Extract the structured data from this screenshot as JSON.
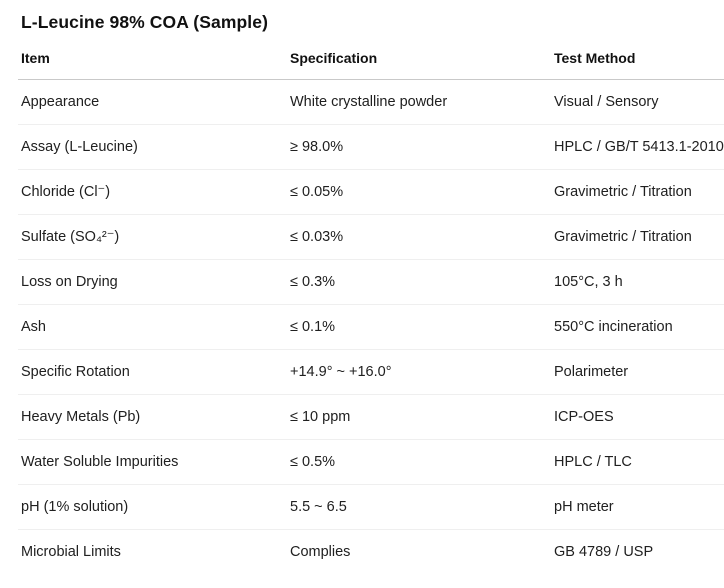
{
  "page": {
    "title": "L-Leucine 98% COA (Sample)"
  },
  "table": {
    "headers": [
      "Item",
      "Specification",
      "Test Method"
    ],
    "rows": [
      [
        "Appearance",
        "White crystalline powder",
        "Visual / Sensory"
      ],
      [
        "Assay (L-Leucine)",
        "≥ 98.0%",
        "HPLC / GB/T 5413.1-2010"
      ],
      [
        "Chloride (Cl⁻)",
        "≤ 0.05%",
        "Gravimetric / Titration"
      ],
      [
        "Sulfate (SO₄²⁻)",
        "≤ 0.03%",
        "Gravimetric / Titration"
      ],
      [
        "Loss on Drying",
        "≤ 0.3%",
        "105°C, 3 h"
      ],
      [
        "Ash",
        "≤ 0.1%",
        "550°C incineration"
      ],
      [
        "Specific Rotation",
        "+14.9° ~ +16.0°",
        "Polarimeter"
      ],
      [
        "Heavy Metals (Pb)",
        "≤ 10 ppm",
        "ICP-OES"
      ],
      [
        "Water Soluble Impurities",
        "≤ 0.5%",
        "HPLC / TLC"
      ],
      [
        "pH (1% solution)",
        "5.5 ~ 6.5",
        "pH meter"
      ],
      [
        "Microbial Limits",
        "Complies",
        "GB 4789 / USP"
      ]
    ]
  },
  "colors": {
    "header_border": "#c9c9c9",
    "row_border": "#efefef",
    "text": "#202020",
    "background": "#ffffff"
  }
}
